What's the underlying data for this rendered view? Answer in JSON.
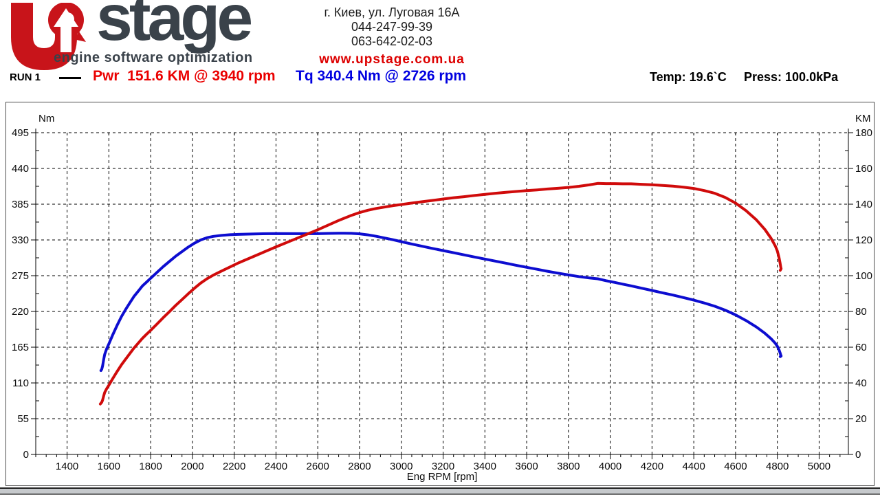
{
  "header": {
    "brand": {
      "stage_text": "stage",
      "tagline": "engine software optimization",
      "brand_red": "#c8141a",
      "brand_dark": "#3a424a"
    },
    "contact": {
      "address": "г. Киев, ул. Луговая 16А",
      "phone1": "044-247-99-39",
      "phone2": "063-642-02-03",
      "website": "www.upstage.com.ua"
    }
  },
  "run_bar": {
    "run_label": "RUN 1",
    "power_summary": "Pwr  151.6 KM @ 3940 rpm",
    "torque_summary": "Tq 340.4 Nm @ 2726 rpm",
    "temperature": "Temp: 19.6`C",
    "pressure": "Press: 100.0kPa"
  },
  "chart_data": {
    "type": "line",
    "title": "",
    "grid": true,
    "x_axis": {
      "label": "Eng RPM [rpm]",
      "min": 1250,
      "max": 5140,
      "major_ticks": [
        1400,
        1600,
        1800,
        2000,
        2200,
        2400,
        2600,
        2800,
        3000,
        3200,
        3400,
        3600,
        3800,
        4000,
        4200,
        4400,
        4600,
        4800,
        5000
      ],
      "minor_step": 50
    },
    "y_left": {
      "label": "Nm",
      "min": 0,
      "max": 495,
      "major_ticks": [
        0,
        55,
        110,
        165,
        220,
        275,
        330,
        385,
        440,
        495
      ],
      "minor_step": 27.5
    },
    "y_right": {
      "label": "KM",
      "min": 0,
      "max": 180,
      "major_ticks": [
        0,
        20,
        40,
        60,
        80,
        100,
        120,
        140,
        160,
        180
      ],
      "minor_step": 10
    },
    "series": [
      {
        "name": "Torque",
        "unit": "Nm",
        "axis": "left",
        "color": "#0d0dd0",
        "peak": "340.4 Nm @ 2726 rpm",
        "points": [
          [
            1562,
            129
          ],
          [
            1566,
            131
          ],
          [
            1570,
            136
          ],
          [
            1575,
            146
          ],
          [
            1580,
            154
          ],
          [
            1590,
            163
          ],
          [
            1600,
            170
          ],
          [
            1620,
            185
          ],
          [
            1640,
            199
          ],
          [
            1660,
            212
          ],
          [
            1680,
            223
          ],
          [
            1700,
            233
          ],
          [
            1720,
            243
          ],
          [
            1740,
            251
          ],
          [
            1760,
            259
          ],
          [
            1780,
            265
          ],
          [
            1800,
            271
          ],
          [
            1830,
            280
          ],
          [
            1860,
            289
          ],
          [
            1890,
            297
          ],
          [
            1920,
            305
          ],
          [
            1950,
            312
          ],
          [
            1980,
            319
          ],
          [
            2010,
            325
          ],
          [
            2040,
            330
          ],
          [
            2070,
            333.5
          ],
          [
            2100,
            335.5
          ],
          [
            2140,
            337
          ],
          [
            2180,
            338
          ],
          [
            2220,
            338.6
          ],
          [
            2300,
            339.3
          ],
          [
            2400,
            339.8
          ],
          [
            2500,
            339.6
          ],
          [
            2600,
            339.6
          ],
          [
            2650,
            340
          ],
          [
            2700,
            340.3
          ],
          [
            2726,
            340.4
          ],
          [
            2760,
            340.2
          ],
          [
            2800,
            339.4
          ],
          [
            2840,
            337.8
          ],
          [
            2880,
            335.6
          ],
          [
            2920,
            333
          ],
          [
            2960,
            330.3
          ],
          [
            3000,
            327.4
          ],
          [
            3050,
            323.8
          ],
          [
            3100,
            320.3
          ],
          [
            3150,
            316.9
          ],
          [
            3200,
            313.6
          ],
          [
            3250,
            310.3
          ],
          [
            3300,
            307
          ],
          [
            3350,
            303.8
          ],
          [
            3400,
            300.6
          ],
          [
            3450,
            297.4
          ],
          [
            3500,
            294.2
          ],
          [
            3550,
            291
          ],
          [
            3600,
            287.9
          ],
          [
            3650,
            284.8
          ],
          [
            3700,
            281.8
          ],
          [
            3750,
            278.9
          ],
          [
            3800,
            276.2
          ],
          [
            3850,
            273.6
          ],
          [
            3900,
            271.5
          ],
          [
            3940,
            270.2
          ],
          [
            3980,
            267.3
          ],
          [
            4020,
            264.7
          ],
          [
            4060,
            262
          ],
          [
            4100,
            259.3
          ],
          [
            4150,
            255.8
          ],
          [
            4200,
            252.3
          ],
          [
            4250,
            248.7
          ],
          [
            4300,
            245.2
          ],
          [
            4350,
            241.4
          ],
          [
            4400,
            237.5
          ],
          [
            4450,
            233
          ],
          [
            4500,
            228
          ],
          [
            4550,
            222
          ],
          [
            4600,
            214.7
          ],
          [
            4650,
            206
          ],
          [
            4700,
            196
          ],
          [
            4740,
            186.5
          ],
          [
            4770,
            178
          ],
          [
            4790,
            171
          ],
          [
            4800,
            166.5
          ],
          [
            4808,
            161
          ],
          [
            4813,
            156.5
          ],
          [
            4816,
            153
          ],
          [
            4818,
            151.5
          ],
          [
            4814,
            150.5
          ]
        ]
      },
      {
        "name": "Power",
        "unit": "KM",
        "axis": "right",
        "color": "#d00b0b",
        "peak": "151.6 KM @ 3940 rpm",
        "points": [
          [
            1559,
            28.2
          ],
          [
            1563,
            28.8
          ],
          [
            1566,
            29.2
          ],
          [
            1570,
            30.4
          ],
          [
            1575,
            32.7
          ],
          [
            1580,
            34.7
          ],
          [
            1590,
            36.9
          ],
          [
            1600,
            38.7
          ],
          [
            1620,
            42.7
          ],
          [
            1640,
            46.5
          ],
          [
            1660,
            50.1
          ],
          [
            1680,
            53.3
          ],
          [
            1700,
            56.4
          ],
          [
            1720,
            59.5
          ],
          [
            1740,
            62.2
          ],
          [
            1760,
            64.9
          ],
          [
            1780,
            67.2
          ],
          [
            1800,
            69.4
          ],
          [
            1830,
            72.9
          ],
          [
            1860,
            76.5
          ],
          [
            1890,
            79.9
          ],
          [
            1920,
            83.4
          ],
          [
            1950,
            86.6
          ],
          [
            1980,
            89.9
          ],
          [
            2010,
            93
          ],
          [
            2040,
            95.9
          ],
          [
            2070,
            98.3
          ],
          [
            2100,
            100.3
          ],
          [
            2140,
            102.6
          ],
          [
            2180,
            104.9
          ],
          [
            2220,
            107.1
          ],
          [
            2300,
            111.1
          ],
          [
            2400,
            116.1
          ],
          [
            2500,
            120.9
          ],
          [
            2600,
            125.7
          ],
          [
            2650,
            128.3
          ],
          [
            2700,
            130.9
          ],
          [
            2726,
            132.1
          ],
          [
            2760,
            133.7
          ],
          [
            2800,
            135.3
          ],
          [
            2840,
            136.6
          ],
          [
            2880,
            137.6
          ],
          [
            2920,
            138.4
          ],
          [
            2960,
            139.2
          ],
          [
            3000,
            139.8
          ],
          [
            3050,
            140.6
          ],
          [
            3100,
            141.4
          ],
          [
            3150,
            142.1
          ],
          [
            3200,
            142.9
          ],
          [
            3250,
            143.6
          ],
          [
            3300,
            144.2
          ],
          [
            3350,
            144.9
          ],
          [
            3400,
            145.5
          ],
          [
            3450,
            146.1
          ],
          [
            3500,
            146.6
          ],
          [
            3550,
            147.1
          ],
          [
            3600,
            147.6
          ],
          [
            3650,
            148
          ],
          [
            3700,
            148.5
          ],
          [
            3750,
            148.9
          ],
          [
            3800,
            149.4
          ],
          [
            3850,
            150
          ],
          [
            3900,
            150.8
          ],
          [
            3940,
            151.6
          ],
          [
            3980,
            151.5
          ],
          [
            4020,
            151.5
          ],
          [
            4060,
            151.4
          ],
          [
            4100,
            151.4
          ],
          [
            4150,
            151.1
          ],
          [
            4200,
            150.9
          ],
          [
            4250,
            150.5
          ],
          [
            4300,
            150.1
          ],
          [
            4350,
            149.5
          ],
          [
            4400,
            148.8
          ],
          [
            4450,
            147.6
          ],
          [
            4500,
            146.1
          ],
          [
            4550,
            143.8
          ],
          [
            4600,
            140.6
          ],
          [
            4650,
            136.4
          ],
          [
            4700,
            131.2
          ],
          [
            4740,
            125.9
          ],
          [
            4770,
            120.9
          ],
          [
            4790,
            116.6
          ],
          [
            4800,
            113.8
          ],
          [
            4808,
            110.2
          ],
          [
            4813,
            107.2
          ],
          [
            4816,
            104.9
          ],
          [
            4818,
            103.9
          ],
          [
            4814,
            103
          ]
        ]
      }
    ]
  }
}
